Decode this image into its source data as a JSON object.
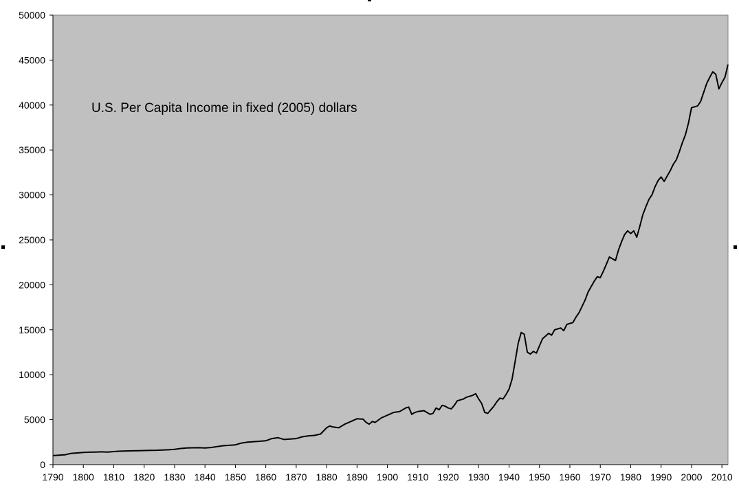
{
  "chart_data": {
    "type": "line",
    "title": "U.S. Per Capita Income in fixed (2005) dollars",
    "xlabel": "",
    "ylabel": "",
    "xlim": [
      1790,
      2012
    ],
    "ylim": [
      0,
      50000
    ],
    "x_ticks": [
      1790,
      1800,
      1810,
      1820,
      1830,
      1840,
      1850,
      1860,
      1870,
      1880,
      1890,
      1900,
      1910,
      1920,
      1930,
      1940,
      1950,
      1960,
      1970,
      1980,
      1990,
      2000,
      2010
    ],
    "y_ticks": [
      0,
      5000,
      10000,
      15000,
      20000,
      25000,
      30000,
      35000,
      40000,
      45000,
      50000
    ],
    "grid": false,
    "legend": "none",
    "plot_background": "#c0c0c0",
    "line_color": "#000000",
    "series": [
      {
        "x": [
          1790,
          1792,
          1794,
          1796,
          1798,
          1800,
          1802,
          1804,
          1806,
          1808,
          1810,
          1812,
          1814,
          1816,
          1818,
          1820,
          1822,
          1824,
          1826,
          1828,
          1830,
          1832,
          1834,
          1836,
          1838,
          1840,
          1842,
          1844,
          1846,
          1848,
          1850,
          1852,
          1854,
          1856,
          1858,
          1860,
          1862,
          1864,
          1866,
          1868,
          1870,
          1872,
          1874,
          1876,
          1878,
          1880,
          1881,
          1882,
          1884,
          1886,
          1888,
          1890,
          1892,
          1893,
          1894,
          1895,
          1896,
          1898,
          1900,
          1902,
          1904,
          1906,
          1907,
          1908,
          1909,
          1910,
          1912,
          1913,
          1914,
          1915,
          1916,
          1917,
          1918,
          1919,
          1920,
          1921,
          1922,
          1923,
          1924,
          1925,
          1926,
          1927,
          1928,
          1929,
          1930,
          1931,
          1932,
          1933,
          1934,
          1935,
          1936,
          1937,
          1938,
          1939,
          1940,
          1941,
          1942,
          1943,
          1944,
          1945,
          1946,
          1947,
          1948,
          1949,
          1950,
          1951,
          1952,
          1953,
          1954,
          1955,
          1956,
          1957,
          1958,
          1959,
          1960,
          1961,
          1962,
          1963,
          1964,
          1965,
          1966,
          1967,
          1968,
          1969,
          1970,
          1971,
          1972,
          1973,
          1974,
          1975,
          1976,
          1977,
          1978,
          1979,
          1980,
          1981,
          1982,
          1983,
          1984,
          1985,
          1986,
          1987,
          1988,
          1989,
          1990,
          1991,
          1992,
          1993,
          1994,
          1995,
          1996,
          1997,
          1998,
          1999,
          2000,
          2001,
          2002,
          2003,
          2004,
          2005,
          2006,
          2007,
          2008,
          2009,
          2010,
          2011,
          2012
        ],
        "y": [
          1000,
          1050,
          1100,
          1250,
          1300,
          1350,
          1380,
          1400,
          1420,
          1400,
          1450,
          1500,
          1520,
          1540,
          1550,
          1570,
          1590,
          1600,
          1620,
          1650,
          1700,
          1800,
          1850,
          1870,
          1880,
          1850,
          1900,
          2000,
          2100,
          2150,
          2200,
          2400,
          2500,
          2550,
          2600,
          2650,
          2900,
          3000,
          2800,
          2850,
          2900,
          3100,
          3200,
          3250,
          3400,
          4100,
          4300,
          4200,
          4100,
          4500,
          4800,
          5100,
          5050,
          4700,
          4500,
          4800,
          4700,
          5200,
          5500,
          5800,
          5900,
          6300,
          6400,
          5600,
          5800,
          5900,
          6000,
          5800,
          5600,
          5700,
          6300,
          6100,
          6600,
          6500,
          6300,
          6200,
          6600,
          7100,
          7200,
          7300,
          7500,
          7600,
          7700,
          7900,
          7300,
          6800,
          5800,
          5700,
          6100,
          6500,
          7000,
          7400,
          7300,
          7800,
          8400,
          9500,
          11500,
          13500,
          14700,
          14500,
          12500,
          12300,
          12600,
          12400,
          13200,
          14000,
          14300,
          14600,
          14400,
          15000,
          15100,
          15200,
          14900,
          15600,
          15700,
          15800,
          16400,
          16900,
          17600,
          18300,
          19200,
          19800,
          20400,
          20900,
          20800,
          21500,
          22300,
          23100,
          22900,
          22700,
          23900,
          24800,
          25600,
          26000,
          25700,
          26000,
          25300,
          26500,
          27800,
          28700,
          29500,
          30000,
          30900,
          31600,
          32000,
          31500,
          32100,
          32700,
          33400,
          33900,
          34800,
          35800,
          36700,
          38000,
          39700,
          39800,
          39900,
          40400,
          41400,
          42400,
          43100,
          43700,
          43400,
          41800,
          42500,
          43100,
          44500
        ]
      }
    ]
  }
}
